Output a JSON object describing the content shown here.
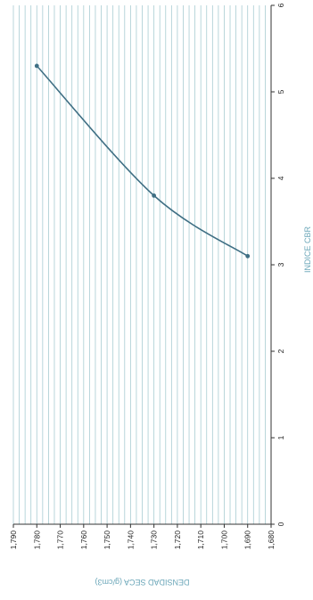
{
  "chart_data": {
    "type": "line",
    "orientation": "rotated-90",
    "xlabel": "DENSIDAD SECA (g/cm3)",
    "ylabel": "INDICE CBR",
    "x_range": [
      1.68,
      1.79
    ],
    "x_ticks": [
      "1,790",
      "1,780",
      "1,770",
      "1,760",
      "1,750",
      "1,740",
      "1,730",
      "1,720",
      "1,710",
      "1,700",
      "1,690",
      "1,680"
    ],
    "y_range": [
      0,
      6
    ],
    "y_ticks": [
      "0",
      "1",
      "2",
      "3",
      "4",
      "5",
      "6"
    ],
    "grid": "vertical-minor-lines",
    "series": [
      {
        "points": [
          {
            "x": 1.78,
            "y": 5.3
          },
          {
            "x": 1.73,
            "y": 3.8
          },
          {
            "x": 1.69,
            "y": 3.1
          }
        ]
      }
    ],
    "colors": {
      "line": "#3f6f84",
      "grid": "#a8ccd2",
      "axis": "#333333",
      "axis_title": "#6aa6b8"
    }
  }
}
